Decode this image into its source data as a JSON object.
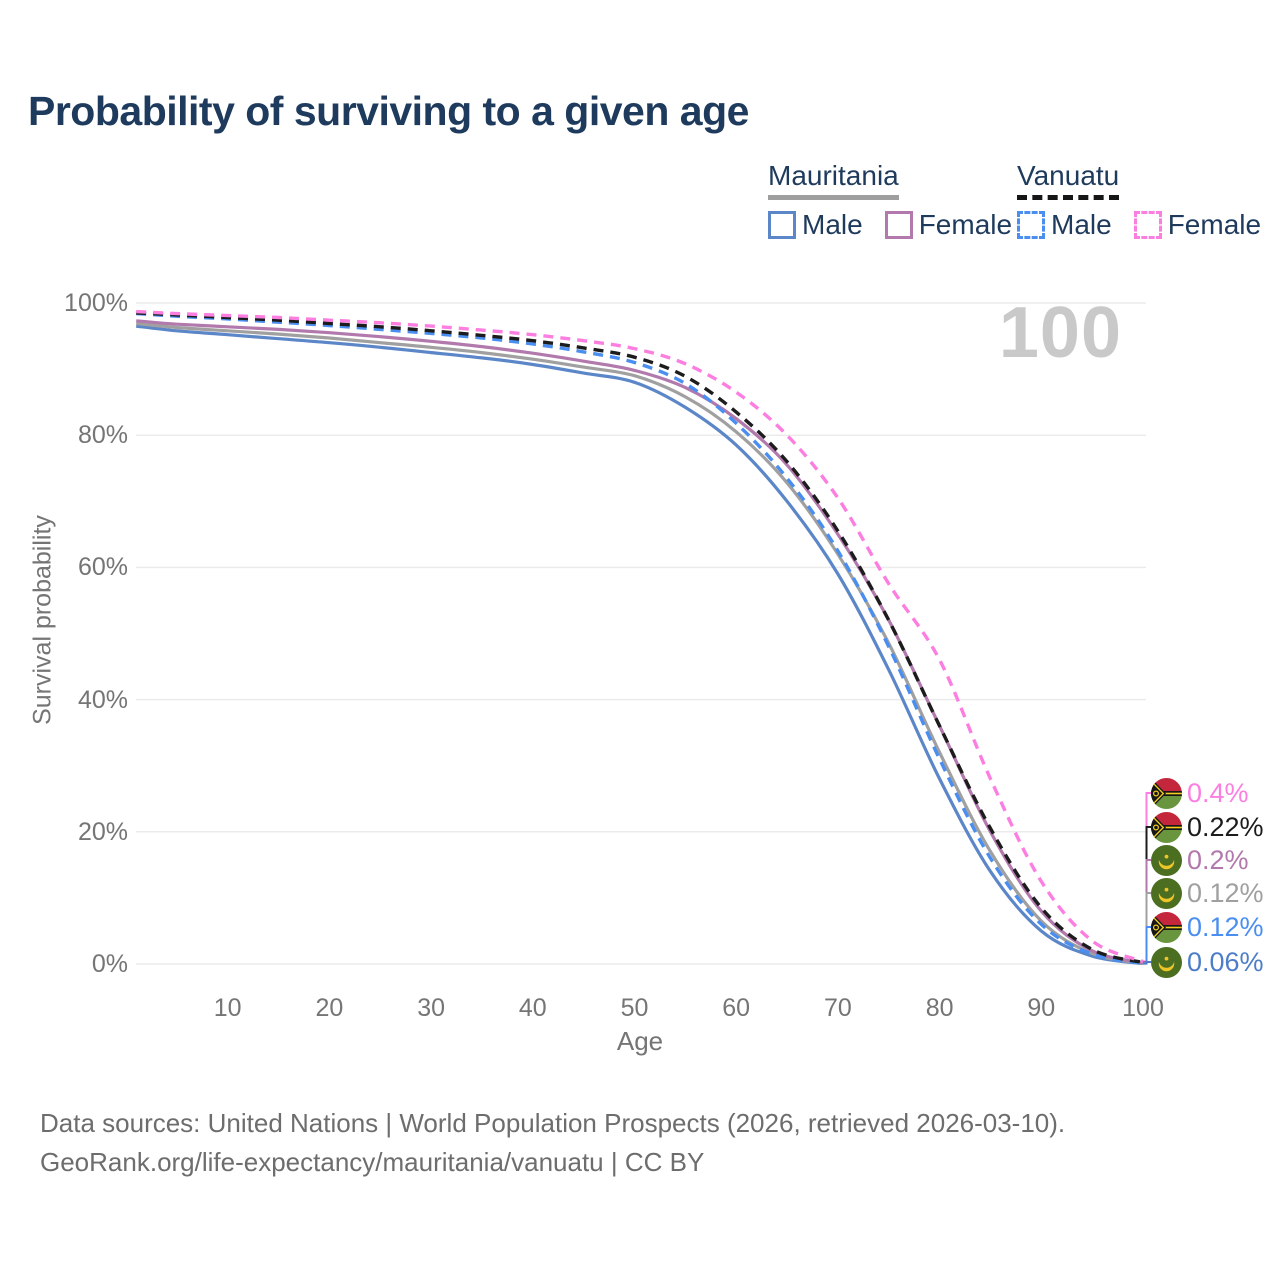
{
  "title": "Probability of surviving to a given age",
  "watermark": "100",
  "legend": {
    "groups": [
      {
        "name": "Mauritania",
        "line_style": "solid",
        "items": [
          {
            "label": "Male",
            "color": "#5b86c8"
          },
          {
            "label": "Female",
            "color": "#b279ad"
          }
        ]
      },
      {
        "name": "Vanuatu",
        "line_style": "dashed",
        "items": [
          {
            "label": "Male",
            "color": "#4a8ef0"
          },
          {
            "label": "Female",
            "color": "#fb7ee0"
          }
        ]
      }
    ]
  },
  "axes": {
    "x": {
      "title": "Age",
      "ticks": [
        10,
        20,
        30,
        40,
        50,
        60,
        70,
        80,
        90,
        100
      ],
      "range": [
        1,
        100
      ]
    },
    "y": {
      "title": "Survival probability",
      "ticks": [
        0,
        20,
        40,
        60,
        80,
        100
      ],
      "tick_suffix": "%",
      "range": [
        0,
        100
      ],
      "grid": true
    }
  },
  "chart_data": {
    "type": "line",
    "title": "Probability of surviving to a given age",
    "xlabel": "Age",
    "ylabel": "Survival probability",
    "xlim": [
      1,
      100
    ],
    "ylim": [
      0,
      100
    ],
    "grid": "horizontal",
    "legend_position": "top-right",
    "ages": [
      1,
      5,
      10,
      15,
      20,
      25,
      30,
      35,
      40,
      45,
      50,
      55,
      60,
      65,
      70,
      75,
      80,
      85,
      90,
      95,
      100
    ],
    "series": [
      {
        "name": "Mauritania Male",
        "country": "Mauritania",
        "sex": "Male",
        "color": "#5b86c8",
        "dash": "solid",
        "flag": "mauritania",
        "end_label": "0.06%",
        "label_color": "#4d7dc9",
        "values": [
          96.5,
          95.8,
          95.2,
          94.6,
          94.0,
          93.3,
          92.5,
          91.7,
          90.7,
          89.4,
          88.0,
          84.2,
          78.5,
          70.0,
          59.0,
          44.5,
          28.0,
          14.0,
          5.0,
          1.2,
          0.06
        ]
      },
      {
        "name": "Mauritania",
        "country": "Mauritania",
        "sex": "All",
        "color": "#a0a0a0",
        "dash": "solid",
        "flag": "mauritania",
        "end_label": "0.12%",
        "label_color": "#a0a0a0",
        "values": [
          96.9,
          96.3,
          95.8,
          95.3,
          94.7,
          94.0,
          93.3,
          92.5,
          91.5,
          90.3,
          89.0,
          85.8,
          80.5,
          72.8,
          62.0,
          48.5,
          32.0,
          17.0,
          6.5,
          1.6,
          0.12
        ]
      },
      {
        "name": "Mauritania Female",
        "country": "Mauritania",
        "sex": "Female",
        "color": "#b279ad",
        "dash": "solid",
        "flag": "mauritania",
        "end_label": "0.2%",
        "label_color": "#b279ad",
        "values": [
          97.3,
          96.8,
          96.4,
          96.0,
          95.5,
          94.9,
          94.2,
          93.4,
          92.4,
          91.2,
          89.8,
          87.2,
          82.5,
          75.5,
          65.0,
          52.0,
          36.0,
          20.0,
          8.0,
          2.0,
          0.2
        ]
      },
      {
        "name": "Vanuatu Male",
        "country": "Vanuatu",
        "sex": "Male",
        "color": "#4a8ef0",
        "dash": "dashed",
        "flag": "vanuatu",
        "end_label": "0.12%",
        "label_color": "#4a8ef0",
        "values": [
          98.4,
          98.0,
          97.6,
          97.1,
          96.6,
          96.0,
          95.4,
          94.7,
          93.8,
          92.6,
          91.0,
          87.8,
          81.8,
          73.5,
          62.5,
          48.0,
          31.0,
          16.0,
          6.0,
          1.5,
          0.12
        ]
      },
      {
        "name": "Vanuatu",
        "country": "Vanuatu",
        "sex": "All",
        "color": "#1c1c1c",
        "dash": "dashed",
        "flag": "vanuatu",
        "end_label": "0.22%",
        "label_color": "#1c1c1c",
        "values": [
          98.5,
          98.2,
          97.8,
          97.4,
          96.9,
          96.4,
          95.8,
          95.1,
          94.3,
          93.2,
          91.8,
          88.9,
          83.5,
          76.0,
          65.5,
          52.0,
          36.0,
          20.5,
          8.5,
          2.2,
          0.22
        ]
      },
      {
        "name": "Vanuatu Female",
        "country": "Vanuatu",
        "sex": "Female",
        "color": "#fb7ee0",
        "dash": "dashed",
        "flag": "vanuatu",
        "end_label": "0.4%",
        "label_color": "#fb7ee0",
        "values": [
          98.7,
          98.4,
          98.1,
          97.8,
          97.4,
          97.0,
          96.5,
          95.9,
          95.2,
          94.3,
          93.1,
          90.8,
          86.5,
          80.0,
          70.5,
          57.5,
          46.0,
          28.0,
          12.5,
          3.5,
          0.4
        ]
      }
    ],
    "end_label_order": [
      "Vanuatu Female",
      "Vanuatu",
      "Mauritania Female",
      "Mauritania",
      "Vanuatu Male",
      "Mauritania Male"
    ]
  },
  "footer": {
    "line1": "Data sources: United Nations | World Population Prospects (2026, retrieved 2026-03-10).",
    "line2": "GeoRank.org/life-expectancy/mauritania/vanuatu | CC BY"
  }
}
